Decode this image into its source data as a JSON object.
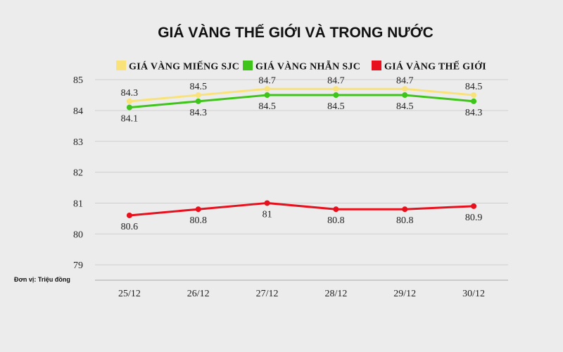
{
  "chart_data": {
    "type": "line",
    "title": "GIÁ VÀNG THẾ GIỚI VÀ TRONG NƯỚC",
    "unit_note": "Đơn vị: Triệu đồng",
    "categories": [
      "25/12",
      "26/12",
      "27/12",
      "28/12",
      "29/12",
      "30/12"
    ],
    "y_ticks": [
      79,
      80,
      81,
      82,
      83,
      84,
      85
    ],
    "ylim": [
      78.5,
      85.3
    ],
    "grid": true,
    "legend_position": "top",
    "series": [
      {
        "name": "GIÁ VÀNG MIẾNG SJC",
        "color": "#f9e27a",
        "values": [
          84.3,
          84.5,
          84.7,
          84.7,
          84.7,
          84.5
        ],
        "labels": [
          "84.3",
          "84.5",
          "84.7",
          "84.7",
          "84.7",
          "84.5"
        ],
        "label_side": "above"
      },
      {
        "name": "GIÁ VÀNG NHẪN SJC",
        "color": "#3ec41a",
        "values": [
          84.1,
          84.3,
          84.5,
          84.5,
          84.5,
          84.3
        ],
        "labels": [
          "84.1",
          "84.3",
          "84.5",
          "84.5",
          "84.5",
          "84.3"
        ],
        "label_side": "below"
      },
      {
        "name": "GIÁ VÀNG THẾ GIỚI",
        "color": "#e8101c",
        "values": [
          80.6,
          80.8,
          81,
          80.8,
          80.8,
          80.9
        ],
        "labels": [
          "80.6",
          "80.8",
          "81",
          "80.8",
          "80.8",
          "80.9"
        ],
        "label_side": "below"
      }
    ]
  }
}
